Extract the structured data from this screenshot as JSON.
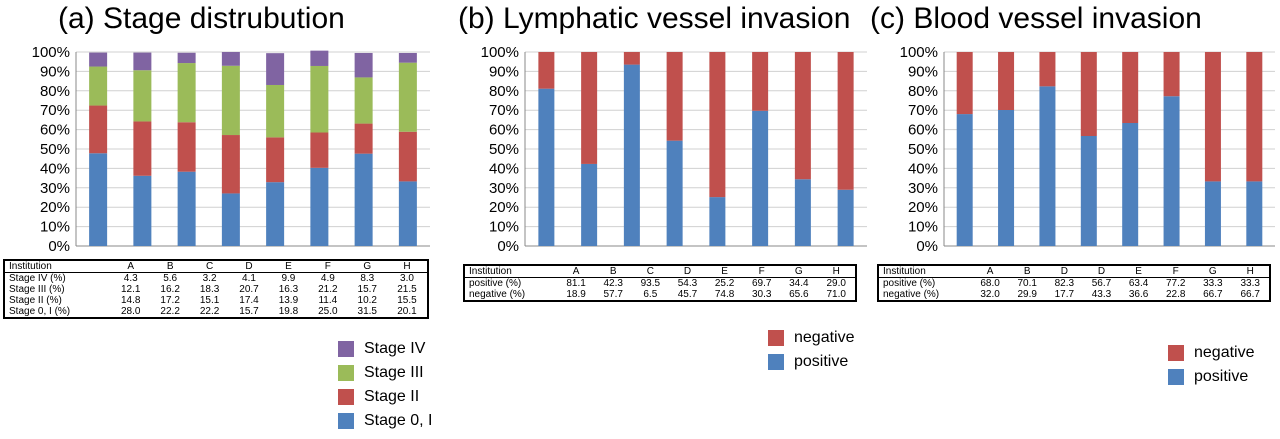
{
  "colors": {
    "stage_iv": "#8064a2",
    "stage_iii": "#9bbb59",
    "stage_ii": "#c0504d",
    "stage_0_i": "#4f81bd",
    "negative": "#c0504d",
    "positive": "#4f81bd",
    "grid": "#d0d0d0"
  },
  "y_ticks": [
    "0%",
    "10%",
    "20%",
    "30%",
    "40%",
    "50%",
    "60%",
    "70%",
    "80%",
    "90%",
    "100%"
  ],
  "chart_data": [
    {
      "type": "bar",
      "stacked": true,
      "title": "(a) Stage distrubution",
      "ylim": [
        0,
        100
      ],
      "categories": [
        "A",
        "B",
        "C",
        "D",
        "E",
        "F",
        "G",
        "H"
      ],
      "series": [
        {
          "name": "Stage 0, I",
          "values": [
            47.8,
            36.2,
            38.3,
            27.1,
            32.9,
            40.3,
            47.6,
            33.3
          ]
        },
        {
          "name": "Stage II",
          "values": [
            24.6,
            28.0,
            25.5,
            30.1,
            23.1,
            18.2,
            15.5,
            25.6
          ]
        },
        {
          "name": "Stage III",
          "values": [
            20.1,
            26.4,
            30.5,
            35.7,
            27.0,
            34.3,
            23.8,
            35.6
          ]
        },
        {
          "name": "Stage IV",
          "values": [
            7.2,
            9.1,
            5.3,
            7.1,
            16.4,
            7.9,
            12.6,
            5.0
          ]
        }
      ],
      "table": {
        "header": [
          "Institution",
          "A",
          "B",
          "C",
          "D",
          "E",
          "F",
          "G",
          "H"
        ],
        "rows": [
          [
            "Stage IV (%)",
            "4.3",
            "5.6",
            "3.2",
            "4.1",
            "9.9",
            "4.9",
            "8.3",
            "3.0"
          ],
          [
            "Stage III (%)",
            "12.1",
            "16.2",
            "18.3",
            "20.7",
            "16.3",
            "21.2",
            "15.7",
            "21.5"
          ],
          [
            "Stage II (%)",
            "14.8",
            "17.2",
            "15.1",
            "17.4",
            "13.9",
            "11.4",
            "10.2",
            "15.5"
          ],
          [
            "Stage 0, I (%)",
            "28.0",
            "22.2",
            "22.2",
            "15.7",
            "19.8",
            "25.0",
            "31.5",
            "20.1"
          ]
        ]
      },
      "legend": [
        "Stage IV",
        "Stage III",
        "Stage II",
        "Stage 0, I"
      ]
    },
    {
      "type": "bar",
      "stacked": true,
      "title": "(b) Lymphatic vessel invasion",
      "ylim": [
        0,
        100
      ],
      "categories": [
        "A",
        "B",
        "C",
        "D",
        "E",
        "F",
        "G",
        "H"
      ],
      "series": [
        {
          "name": "positive",
          "values": [
            81.1,
            42.3,
            93.5,
            54.3,
            25.2,
            69.7,
            34.4,
            29.0
          ]
        },
        {
          "name": "negative",
          "values": [
            18.9,
            57.7,
            6.5,
            45.7,
            74.8,
            30.3,
            65.6,
            71.0
          ]
        }
      ],
      "table": {
        "header": [
          "Institution",
          "A",
          "B",
          "C",
          "D",
          "E",
          "F",
          "G",
          "H"
        ],
        "rows": [
          [
            "positive (%)",
            "81.1",
            "42.3",
            "93.5",
            "54.3",
            "25.2",
            "69.7",
            "34.4",
            "29.0"
          ],
          [
            "negative (%)",
            "18.9",
            "57.7",
            "6.5",
            "45.7",
            "74.8",
            "30.3",
            "65.6",
            "71.0"
          ]
        ]
      },
      "legend": [
        "negative",
        "positive"
      ]
    },
    {
      "type": "bar",
      "stacked": true,
      "title": "(c) Blood vessel invasion",
      "ylim": [
        0,
        100
      ],
      "categories": [
        "A",
        "B",
        "D",
        "D",
        "E",
        "F",
        "G",
        "H"
      ],
      "series": [
        {
          "name": "positive",
          "values": [
            68.0,
            70.1,
            82.3,
            56.7,
            63.4,
            77.2,
            33.3,
            33.3
          ]
        },
        {
          "name": "negative",
          "values": [
            32.0,
            29.9,
            17.7,
            43.3,
            36.6,
            22.8,
            66.7,
            66.7
          ]
        }
      ],
      "table": {
        "header": [
          "Institution",
          "A",
          "B",
          "D",
          "D",
          "E",
          "F",
          "G",
          "H"
        ],
        "rows": [
          [
            "positive (%)",
            "68.0",
            "70.1",
            "82.3",
            "56.7",
            "63.4",
            "77.2",
            "33.3",
            "33.3"
          ],
          [
            "negative (%)",
            "32.0",
            "29.9",
            "17.7",
            "43.3",
            "36.6",
            "22.8",
            "66.7",
            "66.7"
          ]
        ]
      },
      "legend": [
        "negative",
        "positive"
      ]
    }
  ]
}
